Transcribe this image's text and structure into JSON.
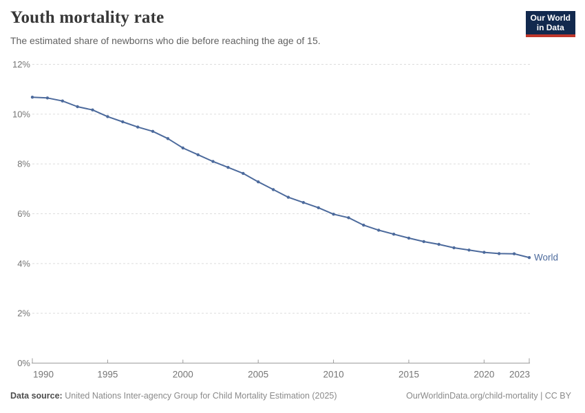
{
  "header": {
    "title": "Youth mortality rate",
    "subtitle": "The estimated share of newborns who die before reaching the age of 15.",
    "logo": {
      "line1": "Our World",
      "line2": "in Data",
      "bg_color": "#12294e",
      "bar_color": "#c0362b"
    }
  },
  "chart_data": {
    "type": "line",
    "title": "Youth mortality rate",
    "xlabel": "",
    "ylabel": "",
    "xlim": [
      1990,
      2023
    ],
    "ylim": [
      0,
      12
    ],
    "x_ticks": [
      1990,
      1995,
      2000,
      2005,
      2010,
      2015,
      2020,
      2023
    ],
    "y_ticks": [
      0,
      2,
      4,
      6,
      8,
      10,
      12
    ],
    "y_tick_suffix": "%",
    "grid": "horizontal-dashed",
    "legend_position": "end-of-line-label",
    "x": [
      1990,
      1991,
      1992,
      1993,
      1994,
      1995,
      1996,
      1997,
      1998,
      1999,
      2000,
      2001,
      2002,
      2003,
      2004,
      2005,
      2006,
      2007,
      2008,
      2009,
      2010,
      2011,
      2012,
      2013,
      2014,
      2015,
      2016,
      2017,
      2018,
      2019,
      2020,
      2021,
      2022,
      2023
    ],
    "series": [
      {
        "name": "World",
        "color": "#4C6A9C",
        "values": [
          10.68,
          10.65,
          10.53,
          10.3,
          10.17,
          9.9,
          9.69,
          9.48,
          9.31,
          9.02,
          8.64,
          8.37,
          8.1,
          7.86,
          7.62,
          7.28,
          6.97,
          6.66,
          6.45,
          6.24,
          5.98,
          5.84,
          5.54,
          5.34,
          5.18,
          5.02,
          4.88,
          4.77,
          4.63,
          4.54,
          4.45,
          4.4,
          4.39,
          4.24
        ]
      }
    ],
    "colors": {
      "grid": "#dcdcdc",
      "axis": "#9b9b9b",
      "tick_label": "#757575"
    }
  },
  "footer": {
    "datasource_label": "Data source:",
    "datasource_text": "United Nations Inter-agency Group for Child Mortality Estimation (2025)",
    "credit": "OurWorldinData.org/child-mortality | CC BY"
  }
}
